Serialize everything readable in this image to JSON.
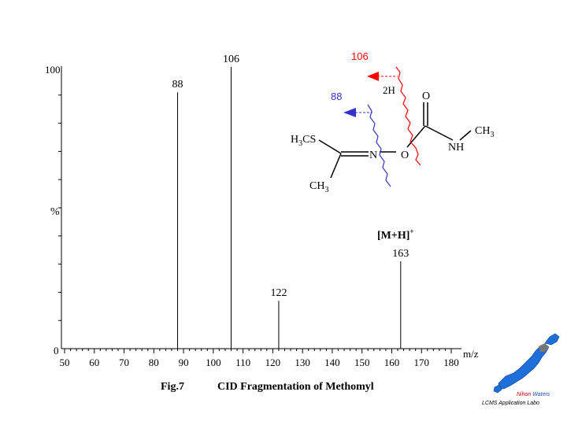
{
  "chart_data": {
    "type": "bar",
    "title": "",
    "xlabel": "m/z",
    "ylabel": "%",
    "xlim": [
      50,
      180
    ],
    "ylim": [
      0,
      100
    ],
    "x_ticks": [
      50,
      60,
      70,
      80,
      90,
      100,
      110,
      120,
      130,
      140,
      150,
      160,
      170,
      180
    ],
    "y_tick_labels": [
      "100",
      "0"
    ],
    "peaks": [
      {
        "mz": 88,
        "intensity": 91,
        "label": "88"
      },
      {
        "mz": 106,
        "intensity": 100,
        "label": "106"
      },
      {
        "mz": 122,
        "intensity": 17,
        "label": "122"
      },
      {
        "mz": 163,
        "intensity": 31,
        "label": "163"
      }
    ],
    "annotation": "[M+H]",
    "annotation_sup": "+",
    "grid": false,
    "legend": "none"
  },
  "structure": {
    "labels": {
      "h3cs": "H",
      "h3cs_sub": "3",
      "h3cs_rest": "CS",
      "ch3_bottom": "CH",
      "ch3_bottom_sub": "3",
      "n": "N",
      "o_ring": "O",
      "o_top": "O",
      "nh": "NH",
      "ch3_right": "CH",
      "ch3_right_sub": "3",
      "two_h": "2H"
    },
    "fragment_red_label": "106",
    "fragment_blue_label": "88",
    "red_color": "#ff0000",
    "blue_color": "#3333cc"
  },
  "caption": {
    "fig": "Fig.7",
    "text": "CID Fragmentation of Methomyl"
  },
  "logo": {
    "brand_1": "Nihon",
    "brand_2": "Waters",
    "tagline": "LCMS Application Labo",
    "map_color": "#1e6fd9",
    "highlight_color": "#777777"
  }
}
